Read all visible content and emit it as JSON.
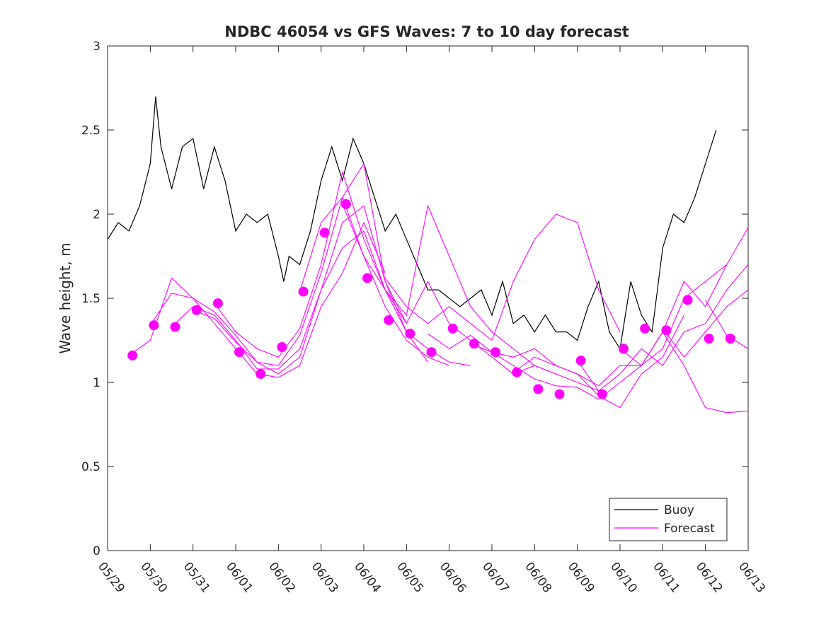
{
  "chart_data": {
    "type": "line",
    "title": "NDBC 46054 vs GFS Waves: 7 to 10 day forecast",
    "xlabel": "",
    "ylabel": "Wave height, m",
    "xlim": [
      "05/29",
      "06/13"
    ],
    "ylim": [
      0,
      3
    ],
    "x_tick_labels": [
      "05/29",
      "05/30",
      "05/31",
      "06/01",
      "06/02",
      "06/03",
      "06/04",
      "06/05",
      "06/06",
      "06/07",
      "06/08",
      "06/09",
      "06/10",
      "06/11",
      "06/12",
      "06/13"
    ],
    "y_tick_labels": [
      "0",
      "0.5",
      "1",
      "1.5",
      "2",
      "2.5",
      "3"
    ],
    "grid": false,
    "legend_position": "bottom-right",
    "legend": [
      "Buoy",
      "Forecast"
    ],
    "colors": {
      "buoy": "#000000",
      "forecast": "#ff00ff"
    },
    "series": [
      {
        "name": "Buoy",
        "x": [
          "05/29 00:00",
          "05/29 06:00",
          "05/29 12:00",
          "05/29 18:00",
          "05/30 00:00",
          "05/30 03:00",
          "05/30 06:00",
          "05/30 12:00",
          "05/30 18:00",
          "05/31 00:00",
          "05/31 06:00",
          "05/31 12:00",
          "05/31 18:00",
          "06/01 00:00",
          "06/01 06:00",
          "06/01 12:00",
          "06/01 18:00",
          "06/02 00:00",
          "06/02 03:00",
          "06/02 06:00",
          "06/02 12:00",
          "06/02 18:00",
          "06/03 00:00",
          "06/03 06:00",
          "06/03 12:00",
          "06/03 18:00",
          "06/04 00:00",
          "06/04 06:00",
          "06/04 12:00",
          "06/04 18:00",
          "06/05 00:00",
          "06/05 06:00",
          "06/05 12:00",
          "06/05 18:00",
          "06/06 00:00",
          "06/06 06:00",
          "06/06 12:00",
          "06/06 18:00",
          "06/07 00:00",
          "06/07 06:00",
          "06/07 12:00",
          "06/07 18:00",
          "06/08 00:00",
          "06/08 06:00",
          "06/08 12:00",
          "06/08 18:00",
          "06/09 00:00",
          "06/09 06:00",
          "06/09 12:00",
          "06/09 18:00",
          "06/10 00:00",
          "06/10 06:00",
          "06/10 12:00",
          "06/10 18:00",
          "06/11 00:00",
          "06/11 06:00",
          "06/11 12:00",
          "06/11 18:00",
          "06/12 00:00",
          "06/12 06:00"
        ],
        "values": [
          1.85,
          1.95,
          1.9,
          2.05,
          2.3,
          2.7,
          2.4,
          2.15,
          2.4,
          2.45,
          2.15,
          2.4,
          2.2,
          1.9,
          2.0,
          1.95,
          2.0,
          1.75,
          1.6,
          1.75,
          1.7,
          1.9,
          2.2,
          2.4,
          2.2,
          2.45,
          2.3,
          2.1,
          1.9,
          2.0,
          1.85,
          1.7,
          1.55,
          1.55,
          1.5,
          1.45,
          1.5,
          1.55,
          1.4,
          1.6,
          1.35,
          1.4,
          1.3,
          1.4,
          1.3,
          1.3,
          1.25,
          1.45,
          1.6,
          1.3,
          1.2,
          1.6,
          1.4,
          1.3,
          1.8,
          2.0,
          1.95,
          2.1,
          2.3,
          2.5
        ]
      },
      {
        "name": "Forecast",
        "traces": [
          {
            "x": [
              "05/29 12:00",
              "05/30 00:00",
              "05/30 12:00",
              "05/31 00:00",
              "05/31 12:00",
              "06/01 00:00",
              "06/01 12:00",
              "06/02 00:00",
              "06/02 12:00",
              "06/03 00:00",
              "06/03 12:00",
              "06/04 00:00",
              "06/04 12:00"
            ],
            "values": [
              1.16,
              1.25,
              1.62,
              1.5,
              1.35,
              1.2,
              1.05,
              1.03,
              1.1,
              1.45,
              1.65,
              1.95,
              1.65
            ]
          },
          {
            "x": [
              "05/30 00:00",
              "05/30 12:00",
              "05/31 00:00",
              "05/31 12:00",
              "06/01 00:00",
              "06/01 12:00",
              "06/02 00:00",
              "06/02 12:00",
              "06/03 00:00",
              "06/03 12:00",
              "06/04 00:00",
              "06/04 12:00",
              "06/05 00:00"
            ],
            "values": [
              1.34,
              1.53,
              1.5,
              1.42,
              1.28,
              1.12,
              1.05,
              1.15,
              1.55,
              1.8,
              1.9,
              1.55,
              1.35
            ]
          },
          {
            "x": [
              "05/30 12:00",
              "05/31 00:00",
              "05/31 12:00",
              "06/01 00:00",
              "06/01 12:00",
              "06/02 00:00",
              "06/02 12:00",
              "06/03 00:00",
              "06/03 12:00",
              "06/04 00:00",
              "06/04 12:00",
              "06/05 00:00",
              "06/05 12:00"
            ],
            "values": [
              1.33,
              1.45,
              1.4,
              1.25,
              1.08,
              1.08,
              1.2,
              1.55,
              1.95,
              2.05,
              1.6,
              1.3,
              1.12
            ]
          },
          {
            "x": [
              "05/31 00:00",
              "05/31 12:00",
              "06/01 00:00",
              "06/01 12:00",
              "06/02 00:00",
              "06/02 12:00",
              "06/03 00:00",
              "06/03 12:00",
              "06/04 00:00",
              "06/04 12:00",
              "06/05 00:00",
              "06/05 12:00",
              "06/06 00:00"
            ],
            "values": [
              1.43,
              1.38,
              1.24,
              1.12,
              1.1,
              1.28,
              1.65,
              2.1,
              1.75,
              1.45,
              1.25,
              1.15,
              1.1
            ]
          },
          {
            "x": [
              "05/31 12:00",
              "06/01 00:00",
              "06/01 12:00",
              "06/02 00:00",
              "06/02 12:00",
              "06/03 00:00",
              "06/03 12:00",
              "06/04 00:00",
              "06/04 12:00",
              "06/05 00:00",
              "06/05 12:00",
              "06/06 00:00",
              "06/06 12:00"
            ],
            "values": [
              1.47,
              1.3,
              1.2,
              1.15,
              1.32,
              1.7,
              2.25,
              1.85,
              1.55,
              1.3,
              1.2,
              1.12,
              1.1
            ]
          },
          {
            "x": [
              "06/02 12:00",
              "06/03 00:00",
              "06/03 12:00",
              "06/04 00:00",
              "06/04 12:00",
              "06/05 00:00",
              "06/05 12:00",
              "06/06 00:00",
              "06/06 12:00",
              "06/07 00:00",
              "06/07 12:00",
              "06/08 00:00",
              "06/08 12:00"
            ],
            "values": [
              1.54,
              1.95,
              2.1,
              2.3,
              1.6,
              1.35,
              1.6,
              1.35,
              1.25,
              1.15,
              1.05,
              1.1,
              1.05
            ]
          },
          {
            "x": [
              "06/03 12:00",
              "06/04 00:00",
              "06/04 12:00",
              "06/05 00:00",
              "06/05 12:00",
              "06/06 00:00",
              "06/06 12:00",
              "06/07 00:00",
              "06/07 12:00",
              "06/08 00:00",
              "06/08 12:00",
              "06/09 00:00",
              "06/09 12:00"
            ],
            "values": [
              2.06,
              1.75,
              1.55,
              1.4,
              2.05,
              1.75,
              1.45,
              1.3,
              1.2,
              1.1,
              1.05,
              1.0,
              0.95
            ]
          },
          {
            "x": [
              "06/04 12:00",
              "06/05 00:00",
              "06/05 12:00",
              "06/06 00:00",
              "06/06 12:00",
              "06/07 00:00",
              "06/07 12:00",
              "06/08 00:00",
              "06/08 12:00",
              "06/09 00:00",
              "06/09 12:00",
              "06/10 00:00"
            ],
            "values": [
              1.62,
              1.45,
              1.35,
              1.45,
              1.35,
              1.25,
              1.6,
              1.85,
              2.0,
              1.95,
              1.55,
              1.3
            ]
          },
          {
            "x": [
              "06/05 12:00",
              "06/06 00:00",
              "06/06 12:00",
              "06/07 00:00",
              "06/07 12:00",
              "06/08 00:00",
              "06/08 12:00",
              "06/09 00:00",
              "06/09 12:00",
              "06/10 00:00",
              "06/10 12:00",
              "06/11 00:00",
              "06/11 12:00"
            ],
            "values": [
              1.29,
              1.2,
              1.28,
              1.18,
              1.15,
              1.2,
              1.1,
              1.05,
              0.92,
              0.85,
              1.05,
              1.15,
              1.4
            ]
          },
          {
            "x": [
              "06/06 12:00",
              "06/07 00:00",
              "06/07 12:00",
              "06/08 00:00",
              "06/08 12:00",
              "06/09 00:00",
              "06/09 12:00",
              "06/10 00:00",
              "06/10 12:00",
              "06/11 00:00",
              "06/11 12:00",
              "06/12 00:00",
              "06/12 12:00"
            ],
            "values": [
              1.23,
              1.18,
              1.1,
              1.02,
              0.98,
              0.97,
              0.9,
              1.0,
              1.1,
              1.2,
              1.5,
              1.6,
              1.7
            ]
          },
          {
            "x": [
              "06/07 12:00",
              "06/08 00:00",
              "06/08 12:00",
              "06/09 00:00",
              "06/09 12:00",
              "06/10 00:00",
              "06/10 12:00",
              "06/11 00:00",
              "06/11 12:00",
              "06/12 00:00",
              "06/12 12:00",
              "06/13 00:00"
            ],
            "values": [
              1.06,
              1.15,
              1.1,
              1.05,
              0.98,
              1.1,
              1.1,
              1.3,
              1.1,
              0.85,
              0.82,
              0.83
            ]
          },
          {
            "x": [
              "06/09 00:00",
              "06/09 12:00",
              "06/10 00:00",
              "06/10 12:00",
              "06/11 00:00",
              "06/11 12:00",
              "06/12 00:00",
              "06/12 12:00",
              "06/13 00:00"
            ],
            "values": [
              1.13,
              0.95,
              1.05,
              1.2,
              1.1,
              1.3,
              1.35,
              1.55,
              1.7
            ]
          },
          {
            "x": [
              "06/10 00:00",
              "06/10 12:00",
              "06/11 00:00",
              "06/11 12:00",
              "06/12 00:00",
              "06/12 12:00",
              "06/13 00:00"
            ],
            "values": [
              1.2,
              1.1,
              1.3,
              1.6,
              1.45,
              1.7,
              1.92
            ]
          },
          {
            "x": [
              "06/11 00:00",
              "06/11 12:00",
              "06/12 00:00",
              "06/12 12:00",
              "06/13 00:00"
            ],
            "values": [
              1.32,
              1.15,
              1.3,
              1.45,
              1.55
            ]
          },
          {
            "x": [
              "06/12 00:00",
              "06/12 12:00",
              "06/13 00:00"
            ],
            "values": [
              1.49,
              1.28,
              1.2
            ]
          }
        ],
        "markers": {
          "x": [
            "05/29 14:00",
            "05/30 02:00",
            "05/30 14:00",
            "05/31 02:00",
            "05/31 14:00",
            "06/01 02:00",
            "06/01 14:00",
            "06/02 02:00",
            "06/02 14:00",
            "06/03 02:00",
            "06/03 14:00",
            "06/04 02:00",
            "06/04 14:00",
            "06/05 02:00",
            "06/05 14:00",
            "06/06 02:00",
            "06/06 14:00",
            "06/07 02:00",
            "06/07 14:00",
            "06/08 02:00",
            "06/08 14:00",
            "06/09 02:00",
            "06/09 14:00",
            "06/10 02:00",
            "06/10 14:00",
            "06/11 02:00",
            "06/11 14:00",
            "06/12 02:00",
            "06/12 14:00"
          ],
          "values": [
            1.16,
            1.34,
            1.33,
            1.43,
            1.47,
            1.18,
            1.05,
            1.21,
            1.54,
            1.89,
            2.06,
            1.62,
            1.37,
            1.29,
            1.18,
            1.32,
            1.23,
            1.18,
            1.06,
            0.96,
            0.93,
            1.13,
            0.93,
            1.2,
            1.32,
            1.31,
            1.49,
            1.26,
            1.26
          ]
        }
      }
    ]
  }
}
